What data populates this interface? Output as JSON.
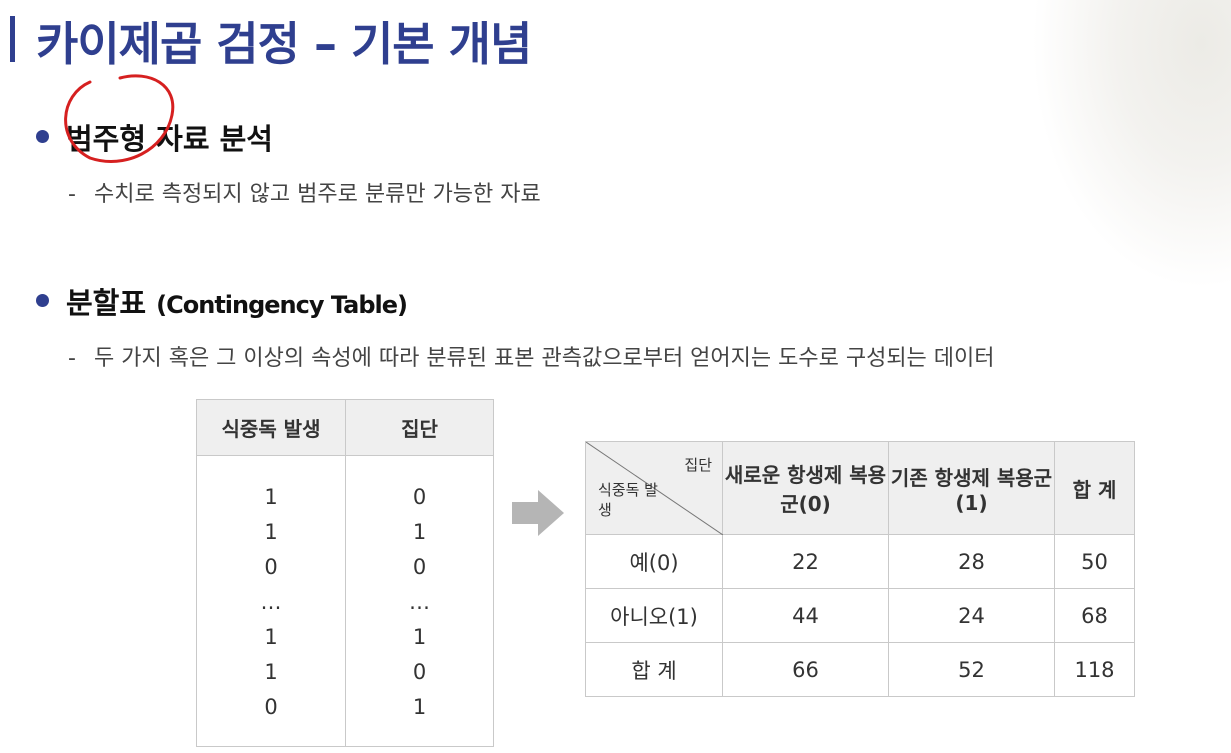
{
  "title": "카이제곱 검정 – 기본 개념",
  "section1": {
    "heading": "범주형 자료 분석",
    "description": "수치로 측정되지 않고 범주로 분류만 가능한 자료"
  },
  "section2": {
    "heading": "분할표",
    "heading_en": "(Contingency Table)",
    "description": "두 가지 혹은 그 이상의 속성에 따라 분류된 표본 관측값으로부터 얻어지는 도수로 구성되는 데이터"
  },
  "raw_table": {
    "headers": [
      "식중독 발생",
      "집단"
    ],
    "col1": [
      "1",
      "1",
      "0",
      "…",
      "1",
      "1",
      "0"
    ],
    "col2": [
      "0",
      "1",
      "0",
      "…",
      "1",
      "0",
      "1"
    ]
  },
  "contingency_table": {
    "corner_top": "집단",
    "corner_bottom": "식중독 발생",
    "headers": [
      "새로운 항생제 복용군(0)",
      "기존 항생제 복용군(1)",
      "합 계"
    ],
    "rows": [
      {
        "label": "예(0)",
        "values": [
          "22",
          "28",
          "50"
        ]
      },
      {
        "label": "아니오(1)",
        "values": [
          "44",
          "24",
          "68"
        ]
      },
      {
        "label": "합 계",
        "values": [
          "66",
          "52",
          "118"
        ]
      }
    ]
  },
  "colors": {
    "accent": "#2f3f8f",
    "annotation": "#d62020"
  }
}
